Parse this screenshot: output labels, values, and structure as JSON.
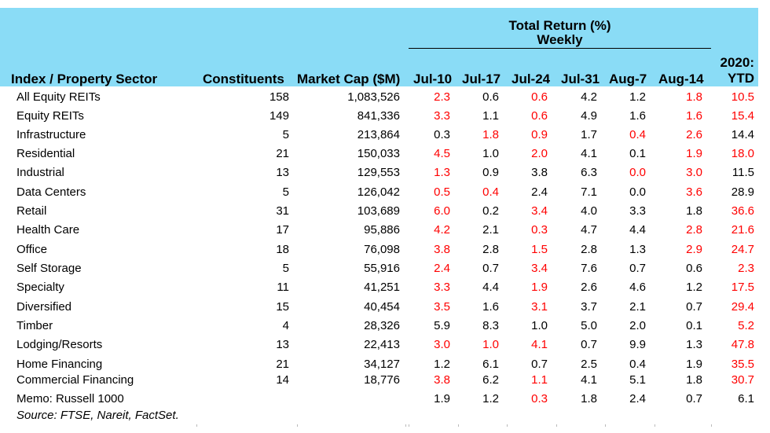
{
  "chart_data": {
    "type": "table",
    "group_header": [
      "Total Return (%)",
      "Weekly"
    ],
    "columns": {
      "sector": "Index / Property Sector",
      "constituents": "Constituents",
      "market_cap": "Market Cap ($M)",
      "jul10": "Jul-10",
      "jul17": "Jul-17",
      "jul24": "Jul-24",
      "jul31": "Jul-31",
      "aug7": "Aug-7",
      "aug14": "Aug-14",
      "ytd_line1": "2020:",
      "ytd_line2": "YTD"
    },
    "highlight_color": "#ff0000",
    "header_color": "#8adcf6",
    "rows": [
      {
        "sector": "All Equity REITs",
        "constituents": "158",
        "market_cap": "1,083,526",
        "values": [
          "2.3",
          "0.6",
          "0.6",
          "4.2",
          "1.2",
          "1.8",
          "10.5"
        ],
        "red": [
          true,
          false,
          true,
          false,
          false,
          true,
          true
        ]
      },
      {
        "sector": "Equity REITs",
        "constituents": "149",
        "market_cap": "841,336",
        "values": [
          "3.3",
          "1.1",
          "0.6",
          "4.9",
          "1.6",
          "1.6",
          "15.4"
        ],
        "red": [
          true,
          false,
          true,
          false,
          false,
          true,
          true
        ]
      },
      {
        "sector": "Infrastructure",
        "constituents": "5",
        "market_cap": "213,864",
        "values": [
          "0.3",
          "1.8",
          "0.9",
          "1.7",
          "0.4",
          "2.6",
          "14.4"
        ],
        "red": [
          false,
          true,
          true,
          false,
          true,
          true,
          false
        ]
      },
      {
        "sector": "Residential",
        "constituents": "21",
        "market_cap": "150,033",
        "values": [
          "4.5",
          "1.0",
          "2.0",
          "4.1",
          "0.1",
          "1.9",
          "18.0"
        ],
        "red": [
          true,
          false,
          true,
          false,
          false,
          true,
          true
        ]
      },
      {
        "sector": "Industrial",
        "constituents": "13",
        "market_cap": "129,553",
        "values": [
          "1.3",
          "0.9",
          "3.8",
          "6.3",
          "0.0",
          "3.0",
          "11.5"
        ],
        "red": [
          true,
          false,
          false,
          false,
          true,
          true,
          false
        ]
      },
      {
        "sector": "Data Centers",
        "constituents": "5",
        "market_cap": "126,042",
        "values": [
          "0.5",
          "0.4",
          "2.4",
          "7.1",
          "0.0",
          "3.6",
          "28.9"
        ],
        "red": [
          true,
          true,
          false,
          false,
          false,
          true,
          false
        ]
      },
      {
        "sector": "Retail",
        "constituents": "31",
        "market_cap": "103,689",
        "values": [
          "6.0",
          "0.2",
          "3.4",
          "4.0",
          "3.3",
          "1.8",
          "36.6"
        ],
        "red": [
          true,
          false,
          true,
          false,
          false,
          false,
          true
        ]
      },
      {
        "sector": "Health Care",
        "constituents": "17",
        "market_cap": "95,886",
        "values": [
          "4.2",
          "2.1",
          "0.3",
          "4.7",
          "4.4",
          "2.8",
          "21.6"
        ],
        "red": [
          true,
          false,
          true,
          false,
          false,
          true,
          true
        ]
      },
      {
        "sector": "Office",
        "constituents": "18",
        "market_cap": "76,098",
        "values": [
          "3.8",
          "2.8",
          "1.5",
          "2.8",
          "1.3",
          "2.9",
          "24.7"
        ],
        "red": [
          true,
          false,
          true,
          false,
          false,
          true,
          true
        ]
      },
      {
        "sector": "Self Storage",
        "constituents": "5",
        "market_cap": "55,916",
        "values": [
          "2.4",
          "0.7",
          "3.4",
          "7.6",
          "0.7",
          "0.6",
          "2.3"
        ],
        "red": [
          true,
          false,
          true,
          false,
          false,
          false,
          true
        ]
      },
      {
        "sector": "Specialty",
        "constituents": "11",
        "market_cap": "41,251",
        "values": [
          "3.3",
          "4.4",
          "1.9",
          "2.6",
          "4.6",
          "1.2",
          "17.5"
        ],
        "red": [
          true,
          false,
          true,
          false,
          false,
          false,
          true
        ]
      },
      {
        "sector": "Diversified",
        "constituents": "15",
        "market_cap": "40,454",
        "values": [
          "3.5",
          "1.6",
          "3.1",
          "3.7",
          "2.1",
          "0.7",
          "29.4"
        ],
        "red": [
          true,
          false,
          true,
          false,
          false,
          false,
          true
        ]
      },
      {
        "sector": "Timber",
        "constituents": "4",
        "market_cap": "28,326",
        "values": [
          "5.9",
          "8.3",
          "1.0",
          "5.0",
          "2.0",
          "0.1",
          "5.2"
        ],
        "red": [
          false,
          false,
          false,
          false,
          false,
          false,
          true
        ]
      },
      {
        "sector": "Lodging/Resorts",
        "constituents": "13",
        "market_cap": "22,413",
        "values": [
          "3.0",
          "1.0",
          "4.1",
          "0.7",
          "9.9",
          "1.3",
          "47.8"
        ],
        "red": [
          true,
          true,
          true,
          false,
          false,
          false,
          true
        ]
      },
      {
        "sector": "Home Financing",
        "constituents": "21",
        "market_cap": "34,127",
        "values": [
          "1.2",
          "6.1",
          "0.7",
          "2.5",
          "0.4",
          "1.9",
          "35.5"
        ],
        "red": [
          false,
          false,
          false,
          false,
          false,
          false,
          true
        ]
      },
      {
        "sector": "Commercial Financing",
        "constituents": "14",
        "market_cap": "18,776",
        "values": [
          "3.8",
          "6.2",
          "1.1",
          "4.1",
          "5.1",
          "1.8",
          "30.7"
        ],
        "red": [
          true,
          false,
          true,
          false,
          false,
          false,
          true
        ]
      },
      {
        "sector": "Memo: Russell 1000",
        "constituents": "",
        "market_cap": "",
        "values": [
          "1.9",
          "1.2",
          "0.3",
          "1.8",
          "2.4",
          "0.7",
          "6.1"
        ],
        "red": [
          false,
          false,
          true,
          false,
          false,
          false,
          false
        ]
      }
    ],
    "source": "Source: FTSE, Nareit, FactSet."
  }
}
